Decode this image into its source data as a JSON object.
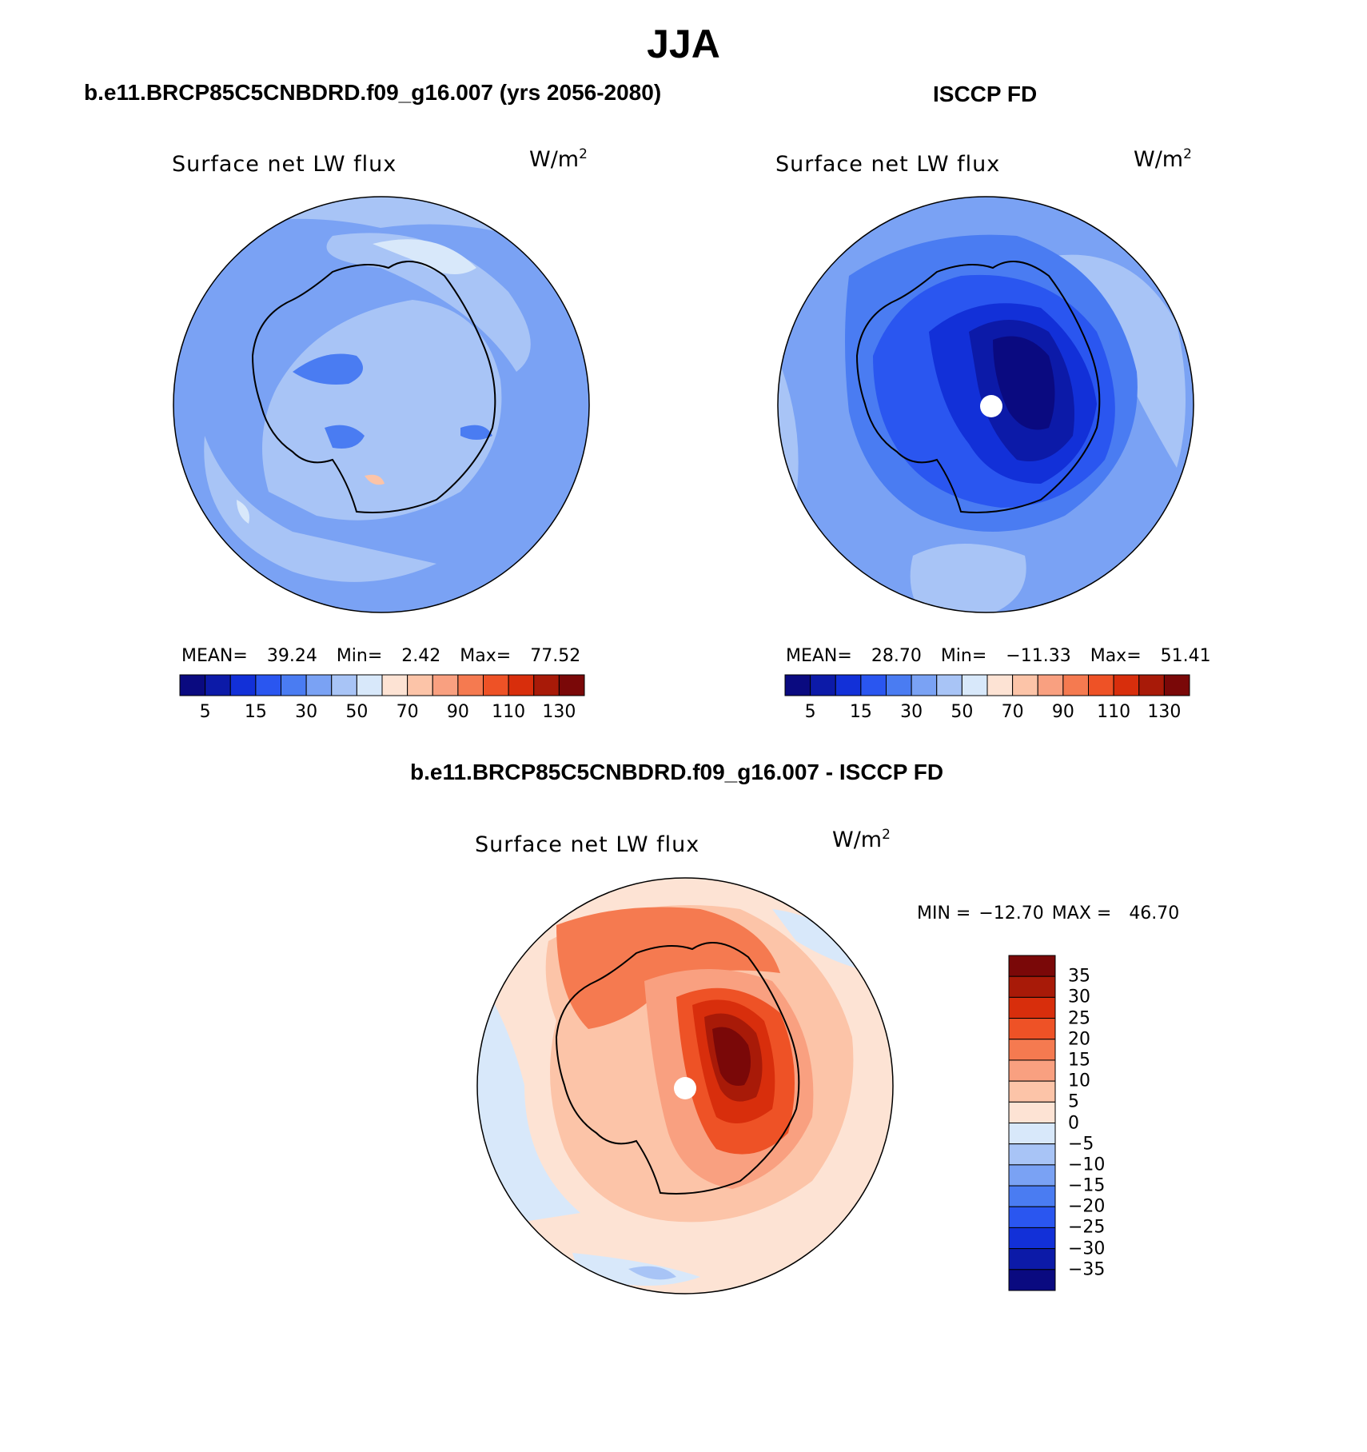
{
  "figure": {
    "title": "JJA"
  },
  "panels": [
    {
      "case_title": "b.e11.BRCP85C5CNBDRD.f09_g16.007 (yrs 2056-2080)",
      "variable": "Surface net LW flux",
      "units_base": "W/m",
      "units_exp": "2",
      "stats": {
        "mean_label": "MEAN=",
        "mean": "39.24",
        "min_label": "Min=",
        "min": "2.42",
        "max_label": "Max=",
        "max": "77.52"
      }
    },
    {
      "case_title": "ISCCP FD",
      "variable": "Surface net LW flux",
      "units_base": "W/m",
      "units_exp": "2",
      "stats": {
        "mean_label": "MEAN=",
        "mean": "28.70",
        "min_label": "Min=",
        "min": "−11.33",
        "max_label": "Max=",
        "max": "51.41"
      }
    },
    {
      "case_title": "b.e11.BRCP85C5CNBDRD.f09_g16.007 - ISCCP FD",
      "variable": "Surface net LW flux",
      "units_base": "W/m",
      "units_exp": "2",
      "stats": {
        "min_label": "MIN =",
        "min": "−12.70",
        "max_label": "MAX =",
        "max": "46.70"
      }
    }
  ],
  "colorbars": {
    "horizontal": {
      "colors": [
        "#0a0a80",
        "#0c1aa8",
        "#1230d8",
        "#2a56f0",
        "#4a7cf2",
        "#7aa2f4",
        "#a8c4f6",
        "#d8e8fa",
        "#fde3d4",
        "#fcc4a8",
        "#f9a080",
        "#f57a50",
        "#ee5226",
        "#d82e0c",
        "#a81a08",
        "#7a0808"
      ],
      "tick_labels": [
        "5",
        "15",
        "30",
        "50",
        "70",
        "90",
        "110",
        "130"
      ]
    },
    "vertical": {
      "colors": [
        "#7a0808",
        "#a81a08",
        "#d82e0c",
        "#ee5226",
        "#f57a50",
        "#f9a080",
        "#fcc4a8",
        "#fde3d4",
        "#d8e8fa",
        "#a8c4f6",
        "#7aa2f4",
        "#4a7cf2",
        "#2a56f0",
        "#1230d8",
        "#0c1aa8",
        "#0a0a80"
      ],
      "tick_labels": [
        "35",
        "30",
        "25",
        "20",
        "15",
        "10",
        "5",
        "0",
        "−5",
        "−10",
        "−15",
        "−20",
        "−25",
        "−30",
        "−35"
      ]
    }
  },
  "chart_data": [
    {
      "type": "heatmap",
      "projection": "south polar stereographic",
      "title": "Surface net LW flux",
      "units": "W/m2",
      "mean": 39.24,
      "min": 2.42,
      "max": 77.52,
      "contour_levels": [
        5,
        10,
        15,
        20,
        30,
        40,
        50,
        60,
        70,
        80,
        90,
        100,
        110,
        120,
        130
      ]
    },
    {
      "type": "heatmap",
      "projection": "south polar stereographic",
      "title": "Surface net LW flux",
      "units": "W/m2",
      "mean": 28.7,
      "min": -11.33,
      "max": 51.41,
      "contour_levels": [
        5,
        10,
        15,
        20,
        30,
        40,
        50,
        60,
        70,
        80,
        90,
        100,
        110,
        120,
        130
      ]
    },
    {
      "type": "heatmap",
      "projection": "south polar stereographic",
      "title": "Surface net LW flux",
      "units": "W/m2",
      "min": -12.7,
      "max": 46.7,
      "contour_levels": [
        -35,
        -30,
        -25,
        -20,
        -15,
        -10,
        -5,
        0,
        5,
        10,
        15,
        20,
        25,
        30,
        35
      ]
    }
  ]
}
